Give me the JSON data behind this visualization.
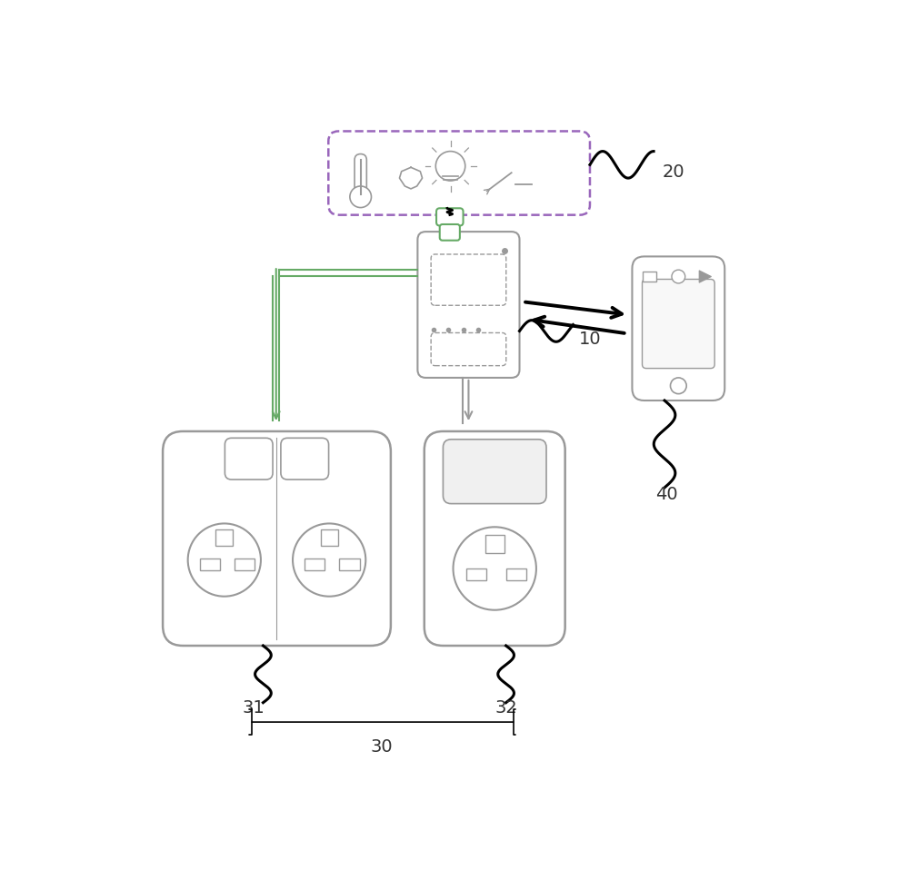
{
  "bg_color": "#ffffff",
  "lc": "#999999",
  "dc": "#333333",
  "purple": "#9966bb",
  "green": "#66aa66",
  "label_fs": 14,
  "figsize": [
    10.0,
    9.58
  ],
  "dpi": 100
}
